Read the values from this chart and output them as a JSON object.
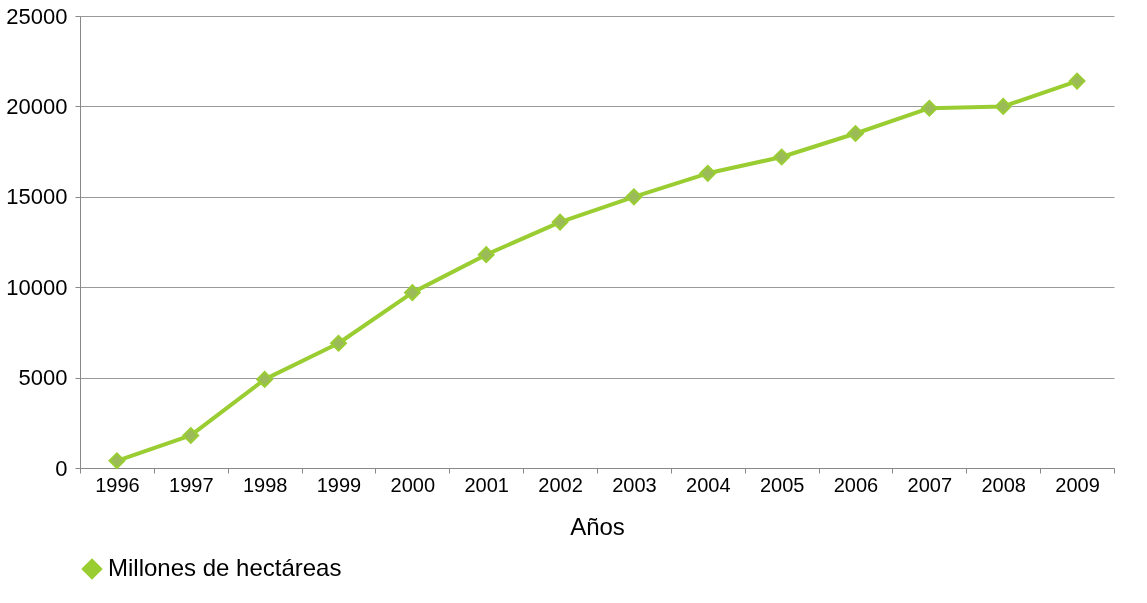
{
  "chart_data": {
    "type": "line",
    "xlabel": "Años",
    "categories": [
      "1996",
      "1997",
      "1998",
      "1999",
      "2000",
      "2001",
      "2002",
      "2003",
      "2004",
      "2005",
      "2006",
      "2007",
      "2008",
      "2009"
    ],
    "series": [
      {
        "name": "Millones de hectáreas",
        "color": "#9acd32",
        "values": [
          400,
          1800,
          4900,
          6900,
          9700,
          11800,
          13600,
          15000,
          16300,
          17200,
          18500,
          19900,
          20000,
          21400
        ]
      }
    ],
    "ylim": [
      0,
      25000
    ],
    "yticks": [
      0,
      5000,
      10000,
      15000,
      20000,
      25000
    ],
    "grid": "y",
    "legend": "bottom",
    "marker": "diamond",
    "line_style": "solid"
  }
}
